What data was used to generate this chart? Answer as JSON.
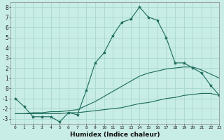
{
  "xlabel": "Humidex (Indice chaleur)",
  "bg_color": "#c8ece6",
  "grid_color": "#a8d8d0",
  "line_color": "#1a6b5a",
  "xmin": -0.5,
  "xmax": 23,
  "ymin": -3.5,
  "ymax": 8.5,
  "line1_x": [
    0,
    1,
    2,
    3,
    4,
    5,
    6,
    7,
    8,
    9,
    10,
    11,
    12,
    13,
    14,
    15,
    16,
    17,
    18,
    19,
    20,
    21,
    22,
    23
  ],
  "line1_y": [
    -1.0,
    -1.8,
    -2.8,
    -2.8,
    -2.8,
    -3.3,
    -2.4,
    -2.6,
    -0.2,
    2.5,
    3.5,
    5.2,
    6.5,
    6.8,
    8.0,
    7.0,
    6.7,
    5.0,
    2.5,
    2.5,
    2.0,
    1.5,
    0.3,
    -0.7
  ],
  "line2_x": [
    0,
    1,
    2,
    3,
    4,
    5,
    6,
    7,
    8,
    9,
    10,
    11,
    12,
    13,
    14,
    15,
    16,
    17,
    18,
    19,
    20,
    21,
    22,
    23
  ],
  "line2_y": [
    -2.5,
    -2.5,
    -2.5,
    -2.5,
    -2.5,
    -2.5,
    -2.4,
    -2.4,
    -2.3,
    -2.2,
    -2.1,
    -2.0,
    -1.9,
    -1.7,
    -1.5,
    -1.4,
    -1.2,
    -1.0,
    -0.9,
    -0.7,
    -0.6,
    -0.5,
    -0.5,
    -0.7
  ],
  "line3_x": [
    0,
    1,
    2,
    3,
    4,
    5,
    6,
    7,
    8,
    9,
    10,
    11,
    12,
    13,
    14,
    15,
    16,
    17,
    18,
    19,
    20,
    21,
    22,
    23
  ],
  "line3_y": [
    -2.5,
    -2.5,
    -2.4,
    -2.4,
    -2.3,
    -2.3,
    -2.2,
    -2.1,
    -1.7,
    -1.3,
    -0.8,
    -0.3,
    0.2,
    0.7,
    1.2,
    1.5,
    1.7,
    1.9,
    2.0,
    2.1,
    2.1,
    1.8,
    1.4,
    1.0
  ]
}
